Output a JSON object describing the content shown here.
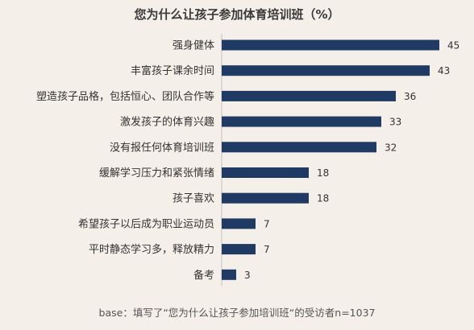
{
  "chart_data": {
    "type": "bar",
    "orientation": "horizontal",
    "title": "您为什么让孩子参加体育培训班（%）",
    "categories": [
      "强身健体",
      "丰富孩子课余时间",
      "塑造孩子品格，包括恒心、团队合作等",
      "激发孩子的体育兴趣",
      "没有报任何体育培训班",
      "缓解学习压力和紧张情绪",
      "孩子喜欢",
      "希望孩子以后成为职业运动员",
      "平时静态学习多，释放精力",
      "备考"
    ],
    "values": [
      45,
      43,
      36,
      33,
      32,
      18,
      18,
      7,
      7,
      3
    ],
    "xlim": [
      0,
      50
    ],
    "grid": false,
    "bar_color": "#1f3b63",
    "note": "base：填写了“您为什么让孩子参加培训班“的受访者n=1037"
  }
}
